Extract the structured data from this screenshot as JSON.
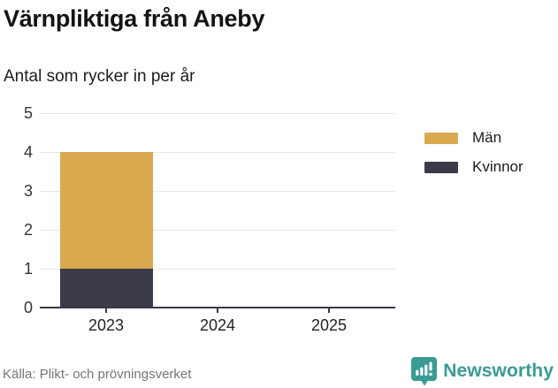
{
  "header": {
    "title": "Värnpliktiga från Aneby",
    "subtitle": "Antal som rycker in per år"
  },
  "chart_data": {
    "type": "bar",
    "stacked": true,
    "title": "Värnpliktiga från Aneby",
    "subtitle": "Antal som rycker in per år",
    "categories": [
      "2023",
      "2024",
      "2025"
    ],
    "series": [
      {
        "name": "Kvinnor",
        "color": "#3b3a48",
        "values": [
          1,
          0,
          0
        ]
      },
      {
        "name": "Män",
        "color": "#d9a950",
        "values": [
          3,
          0,
          0
        ]
      }
    ],
    "xlabel": "",
    "ylabel": "",
    "ylim": [
      0,
      5
    ],
    "yticks": [
      0,
      1,
      2,
      3,
      4,
      5
    ],
    "grid": "horizontal",
    "legend_position": "right"
  },
  "legend": {
    "items": [
      {
        "label": "Män",
        "color": "#d9a950"
      },
      {
        "label": "Kvinnor",
        "color": "#3b3a48"
      }
    ]
  },
  "footer": {
    "source": "Källa: Plikt- och prövningsverket",
    "brand": "Newsworthy"
  },
  "colors": {
    "men": "#d9a950",
    "women": "#3b3a48",
    "axis": "#3a3a48",
    "grid": "#e7e7e7",
    "brand_teal": "#3a9b94",
    "text": "#141414",
    "muted": "#757575"
  }
}
